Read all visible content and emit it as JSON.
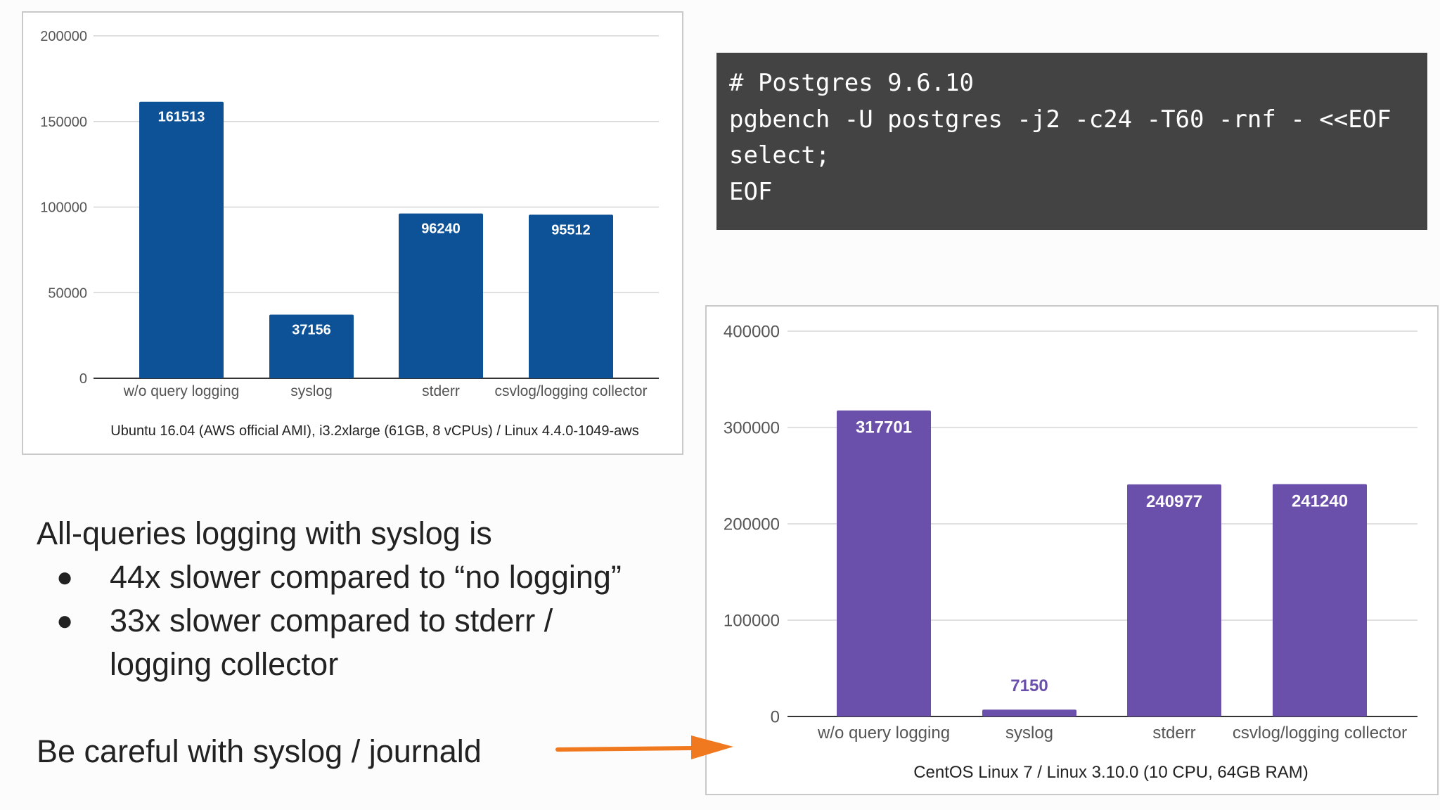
{
  "code": {
    "lines": [
      "# Postgres 9.6.10",
      "pgbench -U postgres -j2 -c24 -T60 -rnf - <<EOF",
      "select;",
      "EOF"
    ]
  },
  "text": {
    "heading": "All-queries logging with syslog is",
    "bullets": [
      "44x slower compared to “no logging”",
      "33x slower compared to stderr / logging collector"
    ],
    "bullet_glyph": "●",
    "careful": "Be careful with syslog / journald"
  },
  "colors": {
    "chart1_bar": "#0d5196",
    "chart2_bar": "#6a4fab",
    "arrow": "#f0791f",
    "code_bg": "#434343"
  },
  "chart_data": [
    {
      "type": "bar",
      "categories": [
        "w/o query logging",
        "syslog",
        "stderr",
        "csvlog/logging collector"
      ],
      "values": [
        161513,
        37156,
        96240,
        95512
      ],
      "data_labels": [
        "161513",
        "37156",
        "96240",
        "95512"
      ],
      "title": "",
      "xlabel": "Ubuntu 16.04 (AWS official AMI), i3.2xlarge (61GB, 8 vCPUs) / Linux 4.4.0-1049-aws",
      "ylabel": "",
      "ylim": [
        0,
        200000
      ],
      "yticks": [
        0,
        50000,
        100000,
        150000,
        200000
      ],
      "ytick_labels": [
        "0",
        "50000",
        "100000",
        "150000",
        "200000"
      ],
      "grid": true,
      "legend": "none"
    },
    {
      "type": "bar",
      "categories": [
        "w/o query logging",
        "syslog",
        "stderr",
        "csvlog/logging collector"
      ],
      "values": [
        317701,
        7150,
        240977,
        241240
      ],
      "data_labels": [
        "317701",
        "7150",
        "240977",
        "241240"
      ],
      "title": "",
      "xlabel": "CentOS Linux 7 / Linux 3.10.0 (10 CPU, 64GB RAM)",
      "ylabel": "",
      "ylim": [
        0,
        400000
      ],
      "yticks": [
        0,
        100000,
        200000,
        300000,
        400000
      ],
      "ytick_labels": [
        "0",
        "100000",
        "200000",
        "300000",
        "400000"
      ],
      "grid": true,
      "legend": "none"
    }
  ]
}
